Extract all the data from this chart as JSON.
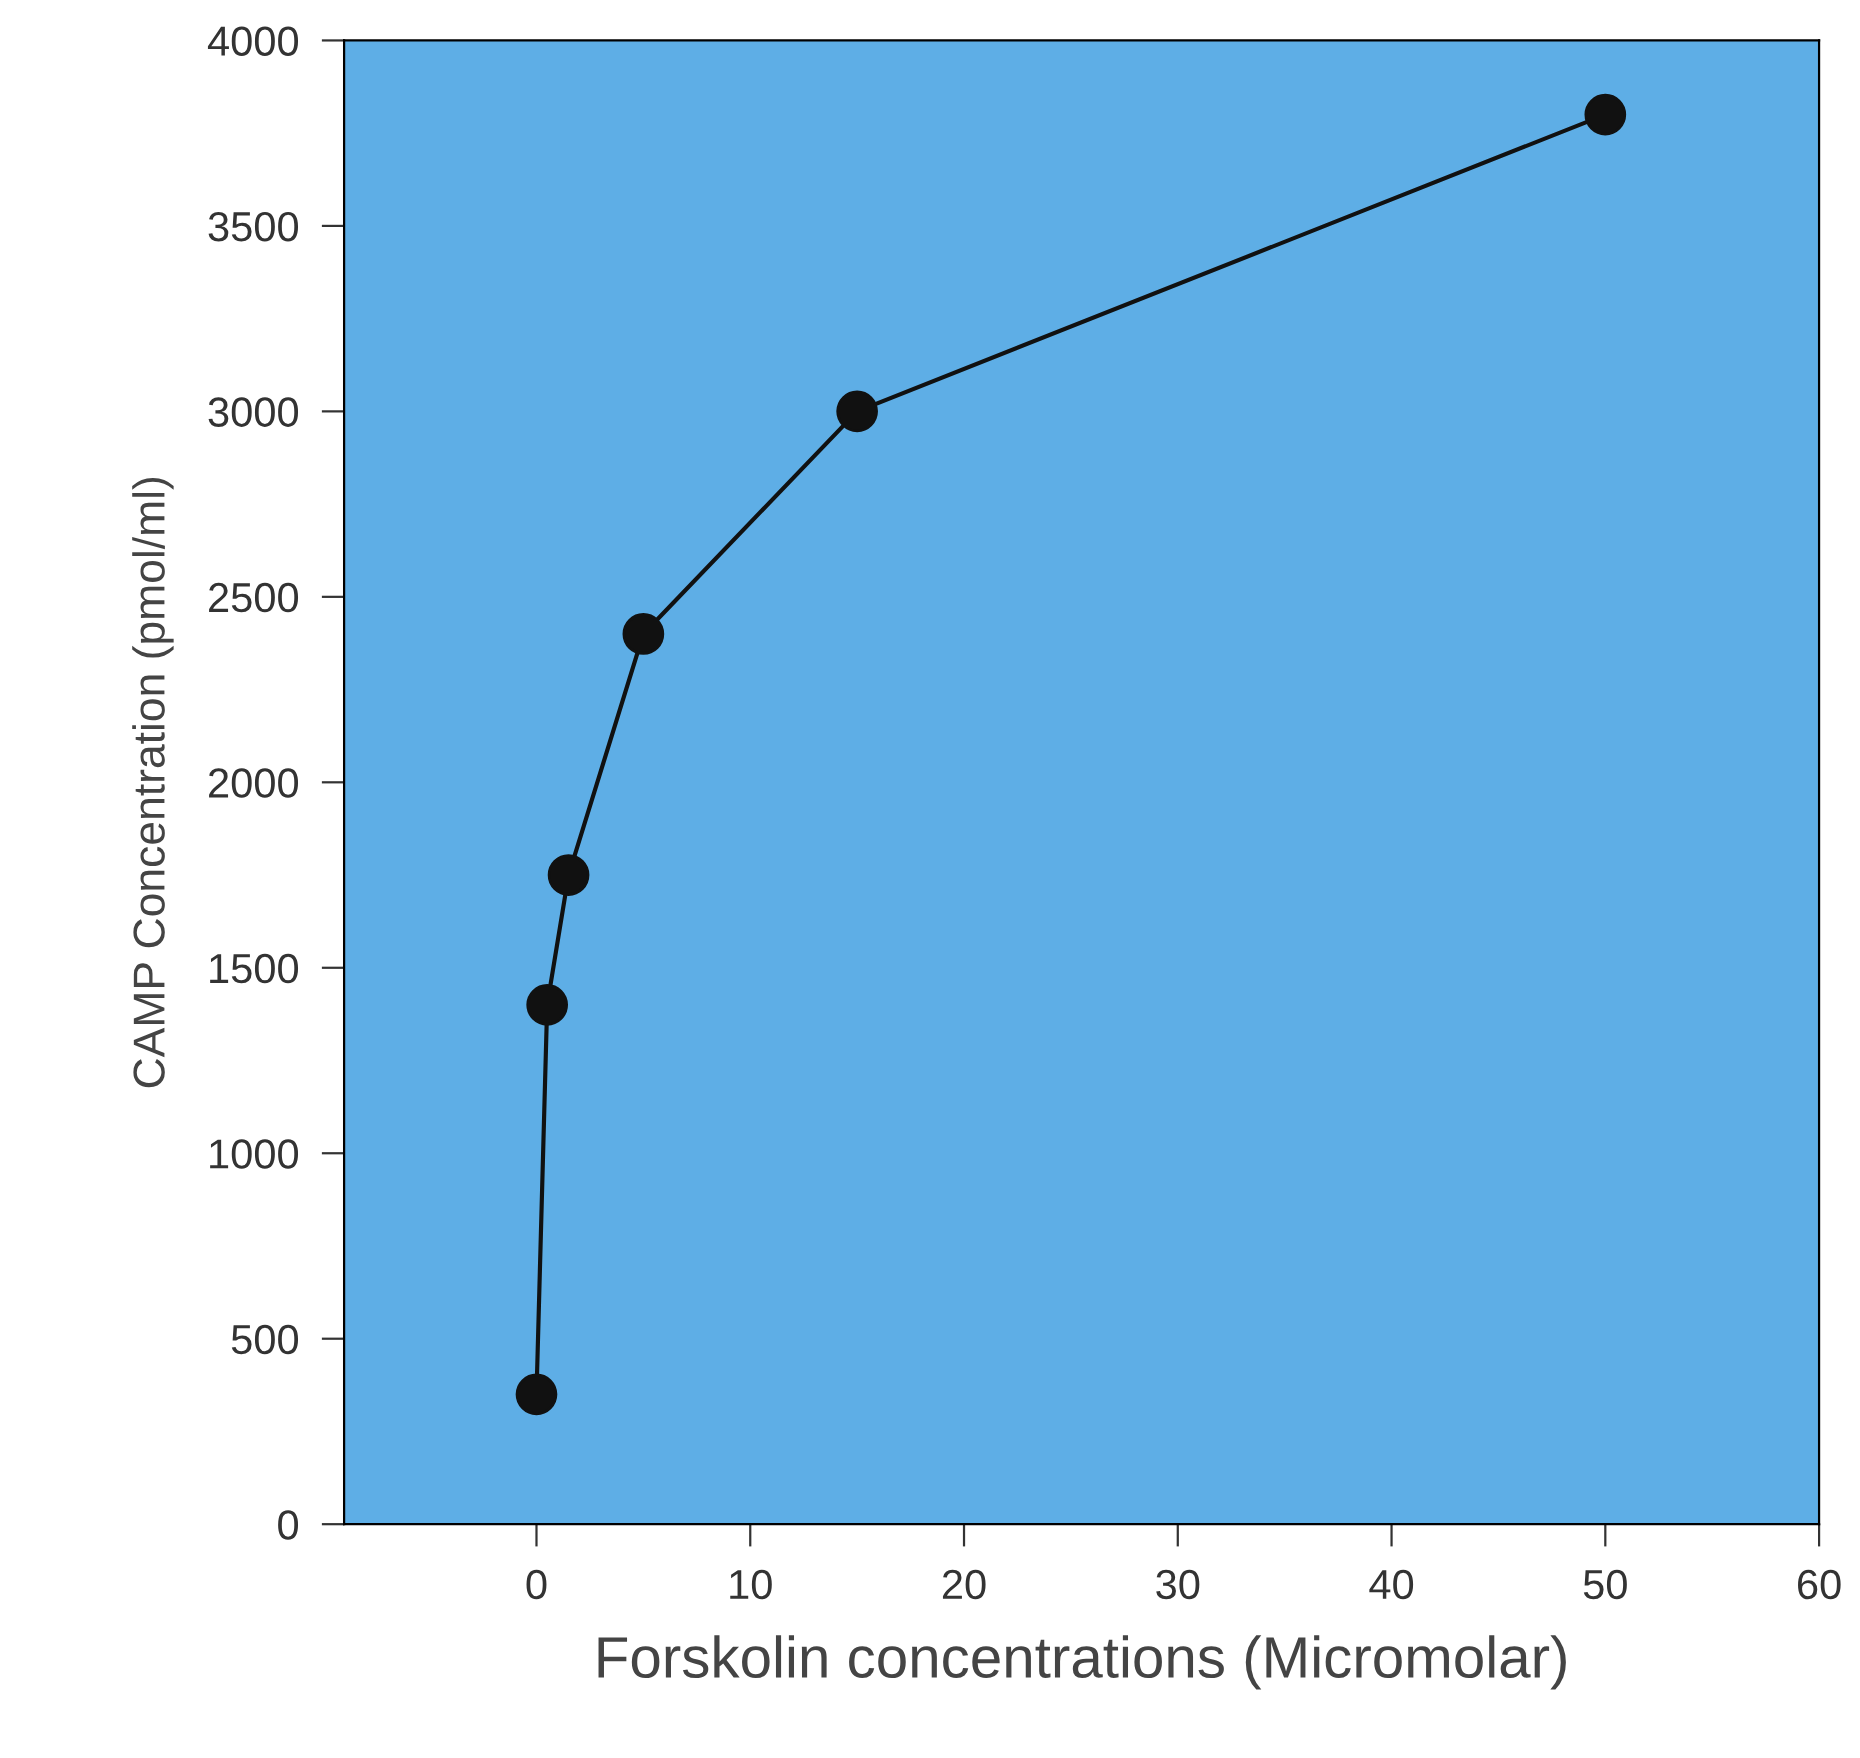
{
  "chart_data": {
    "type": "line",
    "xlabel": "Forskolin concentrations (Micromolar)",
    "ylabel": "CAMP Concentration (pmol/ml)",
    "x": [
      0,
      0.5,
      1.5,
      5,
      15,
      50
    ],
    "series": [
      {
        "color": "#111111",
        "values": [
          350,
          1400,
          1750,
          2400,
          3000,
          3800
        ]
      }
    ],
    "marker": "circle",
    "line_style": "solid",
    "xlim": [
      -9,
      60
    ],
    "xticks": [
      0,
      10,
      20,
      30,
      40,
      50,
      60
    ],
    "ylim": [
      0,
      4000
    ],
    "yticks": [
      0,
      500,
      1000,
      1500,
      2000,
      2500,
      3000,
      3500,
      4000
    ],
    "grid": false,
    "legend": false
  }
}
